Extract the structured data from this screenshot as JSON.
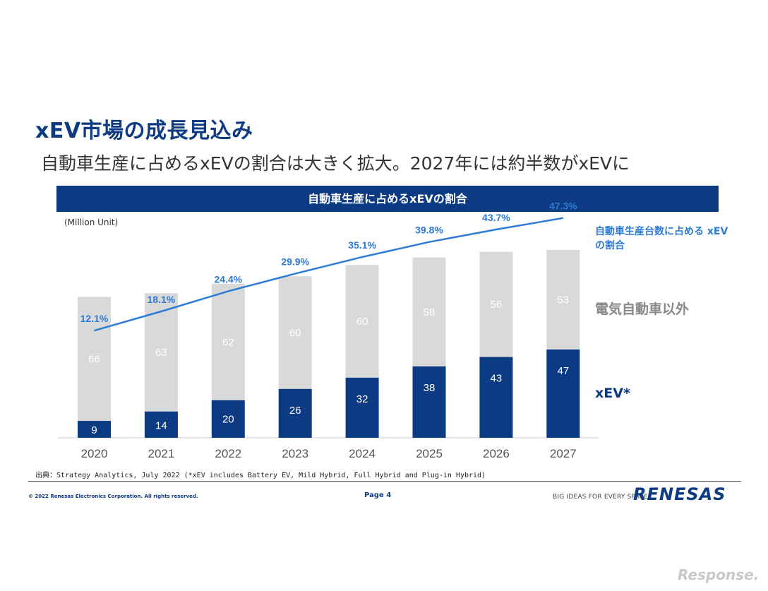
{
  "slide": {
    "title": "xEV市場の成長見込み",
    "subtitle": "自動車生産に占めるxEVの割合は大きく拡大。2027年には約半数がxEVに",
    "banner": "自動車生産に占めるxEVの割合",
    "unit_label": "(Million Unit)",
    "legend_share": "自動車生産台数に占める xEVの割合",
    "legend_other": "電気自動車以外",
    "legend_xev": "xEV*",
    "source": "出典：Strategy Analytics, July 2022 (*xEV includes Battery EV, Mild Hybrid, Full Hybrid and Plug-in Hybrid)",
    "copyright": "© 2022 Renesas Electronics Corporation. All rights reserved.",
    "page": "Page 4",
    "tagline": "BIG IDEAS FOR EVERY SPACE",
    "logo": "RENESAS",
    "watermark": "Response."
  },
  "colors": {
    "xev": "#0c3a83",
    "other": "#d9d9d9",
    "share_line": "#2e7bd6",
    "other_label": "#ffffff",
    "axis": "#cccccc"
  },
  "chart_data": {
    "type": "bar",
    "stacked": true,
    "categories": [
      "2020",
      "2021",
      "2022",
      "2023",
      "2024",
      "2025",
      "2026",
      "2027"
    ],
    "series": [
      {
        "name": "xEV*",
        "values": [
          9,
          14,
          20,
          26,
          32,
          38,
          43,
          47
        ]
      },
      {
        "name": "電気自動車以外",
        "values": [
          66,
          63,
          62,
          60,
          60,
          58,
          56,
          53
        ]
      }
    ],
    "line_series": {
      "name": "自動車生産台数に占めるxEVの割合",
      "values": [
        12.1,
        18.1,
        24.4,
        29.9,
        35.1,
        39.8,
        43.7,
        47.3
      ],
      "labels": [
        "12.1%",
        "18.1%",
        "24.4%",
        "29.9%",
        "35.1%",
        "39.8%",
        "43.7%",
        "47.3%"
      ],
      "ylim": [
        0,
        100
      ]
    },
    "ylabel": "(Million Unit)",
    "ylim": [
      0,
      100
    ]
  }
}
